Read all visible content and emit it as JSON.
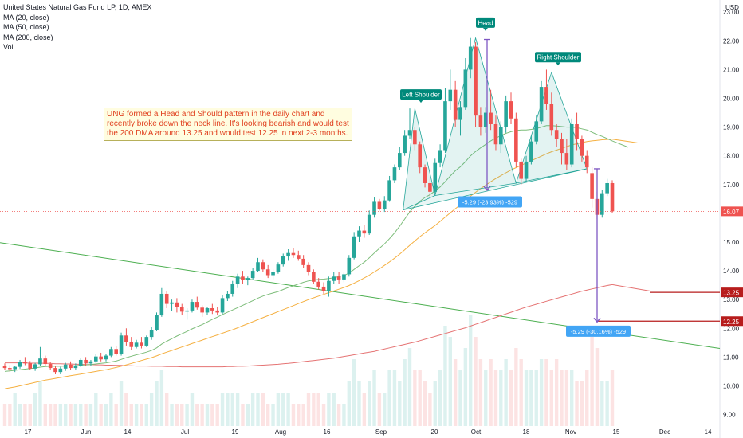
{
  "legend": {
    "symbol": "United States Natural Gas Fund LP, 1D, AMEX",
    "ma20": "MA (20, close)",
    "ma50": "MA (50, close)",
    "ma200": "MA (200, close)",
    "vol": "Vol"
  },
  "annotation": "UNG formed a Head and Should pattern in the daily chart and recently broke down the neck line. It's looking bearish and would test the 200 DMA around 13.25 and would test 12.25 in next 2-3 months.",
  "chart_data": {
    "type": "candlestick",
    "currency": "USD",
    "ylim": [
      8.6,
      23.2
    ],
    "yticks": [
      "23.00",
      "22.00",
      "21.00",
      "20.00",
      "19.00",
      "18.00",
      "17.00",
      "16.00",
      "15.00",
      "14.00",
      "13.00",
      "12.00",
      "11.00",
      "10.00",
      "9.00"
    ],
    "xticks": [
      "17",
      "Jun",
      "14",
      "Jul",
      "19",
      "Aug",
      "16",
      "Sep",
      "20",
      "Oct",
      "18",
      "Nov",
      "15",
      "Dec",
      "14"
    ],
    "last_price": "16.07",
    "target_labels": [
      "13.25",
      "12.25"
    ],
    "targets": [
      13.25,
      12.25
    ],
    "pattern_labels": [
      "Left Shoulder",
      "Head",
      "Right Shoulder"
    ],
    "measurements": [
      "-5.29 (-23.93%) -529",
      "-5.29 (-30.16%) -529"
    ],
    "colors": {
      "up": "#26a69a",
      "down": "#ef5350",
      "ma20": "#7dbd7a",
      "ma50": "#f5b041",
      "ma200": "#e57373",
      "trend": "#4caf50",
      "measure": "#7e57c2",
      "target": "#b71c1c"
    },
    "candles": [
      [
        10.7,
        10.78,
        10.55,
        10.62
      ],
      [
        10.62,
        10.72,
        10.5,
        10.58
      ],
      [
        10.58,
        10.7,
        10.48,
        10.66
      ],
      [
        10.66,
        10.9,
        10.6,
        10.84
      ],
      [
        10.84,
        11.0,
        10.72,
        10.78
      ],
      [
        10.78,
        10.86,
        10.55,
        10.6
      ],
      [
        10.6,
        10.8,
        10.52,
        10.75
      ],
      [
        10.75,
        11.35,
        10.7,
        10.95
      ],
      [
        10.95,
        11.05,
        10.7,
        10.76
      ],
      [
        10.76,
        10.84,
        10.55,
        10.62
      ],
      [
        10.62,
        10.7,
        10.4,
        10.48
      ],
      [
        10.48,
        10.66,
        10.4,
        10.6
      ],
      [
        10.6,
        10.8,
        10.52,
        10.74
      ],
      [
        10.74,
        10.85,
        10.55,
        10.62
      ],
      [
        10.62,
        10.78,
        10.55,
        10.7
      ],
      [
        10.7,
        10.95,
        10.65,
        10.9
      ],
      [
        10.9,
        11.0,
        10.7,
        10.78
      ],
      [
        10.78,
        10.9,
        10.7,
        10.85
      ],
      [
        10.85,
        11.1,
        10.8,
        11.02
      ],
      [
        11.02,
        11.15,
        10.85,
        10.92
      ],
      [
        10.92,
        11.1,
        10.85,
        11.05
      ],
      [
        11.05,
        11.35,
        11.0,
        11.28
      ],
      [
        11.28,
        11.4,
        11.05,
        11.12
      ],
      [
        11.12,
        11.85,
        11.05,
        11.75
      ],
      [
        11.75,
        12.0,
        11.4,
        11.52
      ],
      [
        11.52,
        11.7,
        11.25,
        11.35
      ],
      [
        11.35,
        11.6,
        11.3,
        11.5
      ],
      [
        11.5,
        11.7,
        11.3,
        11.4
      ],
      [
        11.4,
        11.75,
        11.35,
        11.7
      ],
      [
        11.7,
        12.05,
        11.6,
        11.95
      ],
      [
        11.95,
        12.55,
        11.9,
        12.45
      ],
      [
        12.45,
        13.4,
        12.4,
        13.2
      ],
      [
        13.2,
        13.3,
        12.7,
        12.85
      ],
      [
        12.85,
        13.0,
        12.6,
        12.9
      ],
      [
        12.9,
        13.05,
        12.55,
        12.75
      ],
      [
        12.75,
        12.85,
        12.45,
        12.58
      ],
      [
        12.58,
        12.7,
        12.3,
        12.62
      ],
      [
        12.62,
        13.0,
        12.55,
        12.92
      ],
      [
        12.92,
        13.1,
        12.65,
        12.72
      ],
      [
        12.72,
        12.8,
        12.4,
        12.55
      ],
      [
        12.55,
        12.75,
        12.45,
        12.7
      ],
      [
        12.7,
        12.85,
        12.5,
        12.62
      ],
      [
        12.62,
        12.75,
        12.45,
        12.55
      ],
      [
        12.55,
        13.15,
        12.5,
        13.05
      ],
      [
        13.05,
        13.3,
        12.95,
        13.2
      ],
      [
        13.2,
        13.65,
        13.1,
        13.55
      ],
      [
        13.55,
        13.9,
        13.4,
        13.8
      ],
      [
        13.8,
        14.0,
        13.55,
        13.68
      ],
      [
        13.68,
        13.8,
        13.5,
        13.75
      ],
      [
        13.75,
        14.1,
        13.7,
        14.0
      ],
      [
        14.0,
        14.45,
        13.95,
        14.3
      ],
      [
        14.3,
        14.4,
        13.95,
        14.05
      ],
      [
        14.05,
        14.2,
        13.75,
        13.85
      ],
      [
        13.85,
        14.05,
        13.7,
        13.95
      ],
      [
        13.95,
        14.3,
        13.9,
        14.22
      ],
      [
        14.22,
        14.6,
        14.15,
        14.5
      ],
      [
        14.5,
        14.75,
        14.35,
        14.62
      ],
      [
        14.62,
        14.78,
        14.45,
        14.55
      ],
      [
        14.55,
        14.7,
        14.35,
        14.42
      ],
      [
        14.42,
        14.55,
        14.1,
        14.2
      ],
      [
        14.2,
        14.3,
        13.85,
        13.95
      ],
      [
        13.95,
        14.05,
        13.55,
        13.62
      ],
      [
        13.62,
        13.75,
        13.35,
        13.45
      ],
      [
        13.45,
        13.6,
        13.2,
        13.3
      ],
      [
        13.3,
        13.8,
        13.1,
        13.65
      ],
      [
        13.65,
        13.95,
        13.55,
        13.8
      ],
      [
        13.8,
        13.95,
        13.55,
        13.7
      ],
      [
        13.7,
        13.95,
        13.6,
        13.88
      ],
      [
        13.88,
        14.55,
        13.8,
        14.45
      ],
      [
        14.45,
        15.35,
        14.4,
        15.2
      ],
      [
        15.2,
        15.55,
        15.0,
        15.4
      ],
      [
        15.4,
        15.6,
        15.15,
        15.3
      ],
      [
        15.3,
        16.1,
        15.25,
        15.95
      ],
      [
        15.95,
        16.55,
        15.85,
        16.4
      ],
      [
        16.4,
        16.5,
        16.1,
        16.15
      ],
      [
        16.15,
        16.6,
        16.05,
        16.45
      ],
      [
        16.45,
        17.3,
        16.4,
        17.15
      ],
      [
        17.15,
        17.7,
        17.05,
        17.6
      ],
      [
        17.6,
        18.3,
        17.5,
        18.1
      ],
      [
        18.1,
        18.9,
        18.0,
        18.7
      ],
      [
        18.7,
        19.65,
        18.6,
        18.9
      ],
      [
        18.9,
        19.0,
        18.2,
        18.4
      ],
      [
        18.4,
        18.5,
        17.4,
        17.6
      ],
      [
        17.6,
        17.7,
        16.9,
        17.05
      ],
      [
        17.05,
        17.2,
        16.55,
        16.75
      ],
      [
        16.75,
        17.9,
        16.7,
        17.75
      ],
      [
        17.75,
        18.4,
        17.6,
        18.2
      ],
      [
        18.2,
        20.35,
        18.1,
        19.9
      ],
      [
        19.9,
        21.0,
        19.6,
        20.3
      ],
      [
        20.3,
        20.6,
        19.0,
        19.25
      ],
      [
        19.25,
        19.9,
        18.7,
        19.7
      ],
      [
        19.7,
        21.4,
        19.6,
        21.0
      ],
      [
        21.0,
        22.1,
        20.7,
        21.8
      ],
      [
        21.8,
        21.95,
        19.0,
        19.4
      ],
      [
        19.4,
        19.7,
        18.7,
        19.0
      ],
      [
        19.0,
        19.7,
        18.8,
        19.5
      ],
      [
        19.5,
        20.3,
        18.9,
        19.1
      ],
      [
        19.1,
        19.4,
        18.2,
        18.4
      ],
      [
        18.4,
        19.2,
        18.1,
        19.0
      ],
      [
        19.0,
        20.1,
        18.8,
        19.9
      ],
      [
        19.9,
        20.2,
        19.1,
        19.3
      ],
      [
        19.3,
        19.5,
        17.6,
        17.8
      ],
      [
        17.8,
        17.9,
        17.0,
        17.2
      ],
      [
        17.2,
        18.0,
        17.1,
        17.8
      ],
      [
        17.8,
        18.7,
        17.7,
        18.5
      ],
      [
        18.5,
        19.4,
        18.4,
        19.2
      ],
      [
        19.2,
        20.6,
        19.1,
        20.4
      ],
      [
        20.4,
        21.0,
        19.6,
        19.8
      ],
      [
        19.8,
        20.2,
        18.7,
        18.9
      ],
      [
        18.9,
        19.1,
        18.3,
        18.6
      ],
      [
        18.6,
        18.8,
        17.7,
        18.1
      ],
      [
        18.1,
        18.6,
        17.5,
        17.7
      ],
      [
        17.7,
        19.3,
        17.6,
        19.1
      ],
      [
        19.1,
        19.5,
        18.2,
        18.6
      ],
      [
        18.6,
        18.7,
        17.8,
        18.0
      ],
      [
        18.0,
        18.2,
        17.4,
        17.6
      ],
      [
        17.4,
        17.6,
        16.2,
        16.5
      ],
      [
        16.5,
        16.75,
        15.8,
        15.95
      ],
      [
        15.95,
        16.8,
        15.85,
        16.7
      ],
      [
        16.7,
        17.2,
        16.6,
        17.05
      ],
      [
        17.05,
        17.15,
        16.0,
        16.07
      ]
    ],
    "volume": [
      2,
      2,
      3,
      2,
      2,
      2,
      3,
      4,
      2,
      2,
      2,
      2,
      2,
      2,
      2,
      2,
      2,
      2,
      3,
      2,
      2,
      3,
      2,
      4,
      3,
      2,
      2,
      2,
      2,
      3,
      4,
      5,
      3,
      2,
      2,
      2,
      2,
      3,
      2,
      2,
      2,
      2,
      2,
      3,
      3,
      3,
      3,
      2,
      2,
      3,
      3,
      3,
      2,
      2,
      3,
      3,
      3,
      2,
      2,
      2,
      3,
      3,
      3,
      2,
      3,
      3,
      2,
      2,
      4,
      6,
      4,
      3,
      4,
      5,
      3,
      3,
      5,
      5,
      4,
      6,
      7,
      5,
      5,
      4,
      3,
      4,
      5,
      9,
      8,
      6,
      5,
      7,
      10,
      8,
      6,
      5,
      6,
      5,
      5,
      6,
      5,
      7,
      6,
      5,
      5,
      5,
      6,
      6,
      5,
      6,
      5,
      5,
      5,
      4,
      4,
      5,
      8,
      7,
      4,
      4,
      5
    ],
    "ma20": [
      10.5,
      10.52,
      10.54,
      10.56,
      10.58,
      10.6,
      10.62,
      10.65,
      10.67,
      10.68,
      10.68,
      10.68,
      10.69,
      10.7,
      10.7,
      10.72,
      10.73,
      10.74,
      10.76,
      10.78,
      10.8,
      10.83,
      10.86,
      10.92,
      10.98,
      11.03,
      11.08,
      11.12,
      11.17,
      11.23,
      11.32,
      11.45,
      11.55,
      11.64,
      11.73,
      11.81,
      11.89,
      11.98,
      12.06,
      12.13,
      12.22,
      12.31,
      12.39,
      12.48,
      12.56,
      12.64,
      12.72,
      12.8,
      12.88,
      12.96,
      13.05,
      13.12,
      13.18,
      13.23,
      13.28,
      13.35,
      13.42,
      13.48,
      13.54,
      13.6,
      13.65,
      13.68,
      13.7,
      13.71,
      13.73,
      13.76,
      13.8,
      13.84,
      13.92,
      14.05,
      14.18,
      14.3,
      14.45,
      14.62,
      14.78,
      14.94,
      15.12,
      15.32,
      15.55,
      15.8,
      16.05,
      16.25,
      16.42,
      16.55,
      16.65,
      16.78,
      16.92,
      17.1,
      17.3,
      17.48,
      17.62,
      17.8,
      18.0,
      18.15,
      18.28,
      18.4,
      18.52,
      18.62,
      18.7,
      18.78,
      18.84,
      18.88,
      18.9,
      18.9,
      18.92,
      18.95,
      19.0,
      19.05,
      19.05,
      19.04,
      19.02,
      19.0,
      19.0,
      18.98,
      18.94,
      18.9,
      18.82,
      18.74,
      18.68,
      18.6,
      18.52
    ],
    "ma50": [
      9.9,
      9.93,
      9.96,
      10.0,
      10.04,
      10.08,
      10.12,
      10.16,
      10.2,
      10.23,
      10.26,
      10.29,
      10.32,
      10.35,
      10.38,
      10.41,
      10.44,
      10.47,
      10.5,
      10.53,
      10.56,
      10.6,
      10.64,
      10.68,
      10.73,
      10.78,
      10.83,
      10.88,
      10.93,
      10.98,
      11.04,
      11.11,
      11.17,
      11.23,
      11.29,
      11.35,
      11.41,
      11.47,
      11.53,
      11.59,
      11.65,
      11.71,
      11.77,
      11.83,
      11.89,
      11.95,
      12.02,
      12.09,
      12.16,
      12.23,
      12.3,
      12.37,
      12.44,
      12.51,
      12.58,
      12.65,
      12.72,
      12.79,
      12.86,
      12.93,
      13.0,
      13.06,
      13.12,
      13.18,
      13.24,
      13.3,
      13.36,
      13.42,
      13.49,
      13.57,
      13.66,
      13.75,
      13.85,
      13.96,
      14.07,
      14.19,
      14.31,
      14.44,
      14.58,
      14.73,
      14.89,
      15.04,
      15.19,
      15.32,
      15.45,
      15.58,
      15.72,
      15.87,
      16.02,
      16.16,
      16.3,
      16.45,
      16.6,
      16.73,
      16.86,
      16.98,
      17.1,
      17.21,
      17.31,
      17.41,
      17.51,
      17.59,
      17.67,
      17.75,
      17.83,
      17.91,
      17.99,
      18.07,
      18.14,
      18.2,
      18.26,
      18.32,
      18.38,
      18.42,
      18.46,
      18.5,
      18.52,
      18.54,
      18.56,
      18.57,
      18.58
    ],
    "ma200": [
      10.8,
      10.8,
      10.8,
      10.8,
      10.8,
      10.79,
      10.79,
      10.79,
      10.78,
      10.78,
      10.77,
      10.77,
      10.76,
      10.76,
      10.75,
      10.75,
      10.74,
      10.74,
      10.73,
      10.73,
      10.72,
      10.72,
      10.71,
      10.71,
      10.7,
      10.7,
      10.69,
      10.69,
      10.69,
      10.68,
      10.68,
      10.68,
      10.67,
      10.67,
      10.67,
      10.66,
      10.66,
      10.66,
      10.66,
      10.66,
      10.66,
      10.66,
      10.66,
      10.66,
      10.67,
      10.67,
      10.68,
      10.68,
      10.69,
      10.7,
      10.71,
      10.72,
      10.73,
      10.74,
      10.75,
      10.77,
      10.78,
      10.8,
      10.82,
      10.84,
      10.86,
      10.88,
      10.9,
      10.92,
      10.94,
      10.96,
      10.99,
      11.02,
      11.05,
      11.08,
      11.11,
      11.14,
      11.17,
      11.2,
      11.24,
      11.28,
      11.32,
      11.36,
      11.4,
      11.44,
      11.48,
      11.52,
      11.57,
      11.62,
      11.67,
      11.72,
      11.77,
      11.82,
      11.87,
      11.92,
      11.97,
      12.02,
      12.08,
      12.14,
      12.2,
      12.26,
      12.32,
      12.38,
      12.44,
      12.5,
      12.56,
      12.62,
      12.68,
      12.74,
      12.79,
      12.84,
      12.89,
      12.94,
      12.99,
      13.04,
      13.09,
      13.14,
      13.19,
      13.24,
      13.29,
      13.33,
      13.37,
      13.41,
      13.45,
      13.49,
      13.52
    ]
  }
}
